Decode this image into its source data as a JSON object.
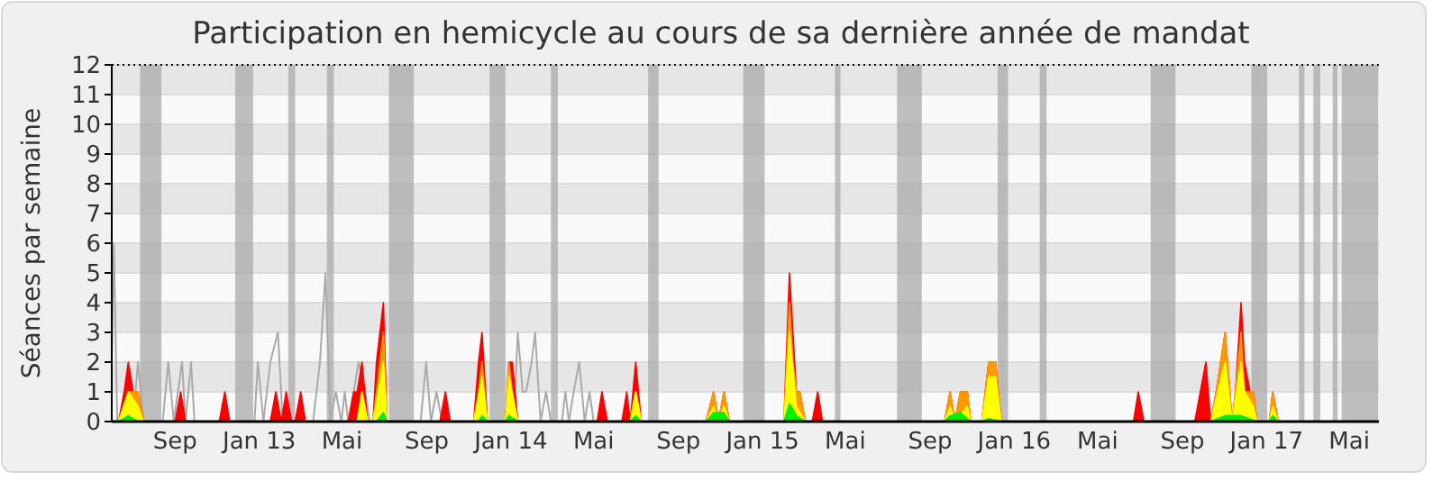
{
  "chart_data": {
    "type": "area",
    "title": "Participation en hemicycle au cours de sa dernière année de mandat",
    "ylabel": "Séances par semaine",
    "xlim": [
      "2012-06-01",
      "2017-06-13"
    ],
    "xticks": [
      {
        "value": "2012-09-01",
        "label": "Sep"
      },
      {
        "value": "2013-01-01",
        "label": "Jan 13"
      },
      {
        "value": "2013-05-01",
        "label": "Mai"
      },
      {
        "value": "2013-09-01",
        "label": "Sep"
      },
      {
        "value": "2014-01-01",
        "label": "Jan 14"
      },
      {
        "value": "2014-05-01",
        "label": "Mai"
      },
      {
        "value": "2014-09-01",
        "label": "Sep"
      },
      {
        "value": "2015-01-01",
        "label": "Jan 15"
      },
      {
        "value": "2015-05-01",
        "label": "Mai"
      },
      {
        "value": "2015-09-01",
        "label": "Sep"
      },
      {
        "value": "2016-01-01",
        "label": "Jan 16"
      },
      {
        "value": "2016-05-01",
        "label": "Mai"
      },
      {
        "value": "2016-09-01",
        "label": "Sep"
      },
      {
        "value": "2017-01-01",
        "label": "Jan 17"
      },
      {
        "value": "2017-05-01",
        "label": "Mai"
      }
    ],
    "ylim": [
      0,
      12
    ],
    "yticks": [
      0,
      1,
      2,
      3,
      4,
      5,
      6,
      7,
      8,
      9,
      10,
      11,
      12
    ],
    "grid": "y",
    "bands": [
      {
        "axis": "x",
        "from": "2012-07-12",
        "to": "2012-08-12",
        "color": "#aaaaaa"
      },
      {
        "axis": "x",
        "from": "2012-11-27",
        "to": "2012-12-23",
        "color": "#aaaaaa"
      },
      {
        "axis": "x",
        "from": "2013-02-12",
        "to": "2013-02-22",
        "color": "#aaaaaa"
      },
      {
        "axis": "x",
        "from": "2013-04-09",
        "to": "2013-04-19",
        "color": "#aaaaaa"
      },
      {
        "axis": "x",
        "from": "2013-07-08",
        "to": "2013-08-13",
        "color": "#aaaaaa"
      },
      {
        "axis": "x",
        "from": "2013-12-01",
        "to": "2013-12-24",
        "color": "#aaaaaa"
      },
      {
        "axis": "x",
        "from": "2014-02-28",
        "to": "2014-03-10",
        "color": "#aaaaaa"
      },
      {
        "axis": "x",
        "from": "2014-07-19",
        "to": "2014-08-03",
        "color": "#aaaaaa"
      },
      {
        "axis": "x",
        "from": "2014-12-04",
        "to": "2015-01-04",
        "color": "#aaaaaa"
      },
      {
        "axis": "x",
        "from": "2015-04-16",
        "to": "2015-04-24",
        "color": "#aaaaaa"
      },
      {
        "axis": "x",
        "from": "2015-07-15",
        "to": "2015-08-20",
        "color": "#aaaaaa"
      },
      {
        "axis": "x",
        "from": "2015-12-08",
        "to": "2015-12-23",
        "color": "#aaaaaa"
      },
      {
        "axis": "x",
        "from": "2016-02-07",
        "to": "2016-02-17",
        "color": "#aaaaaa"
      },
      {
        "axis": "x",
        "from": "2016-07-17",
        "to": "2016-08-22",
        "color": "#aaaaaa"
      },
      {
        "axis": "x",
        "from": "2016-12-10",
        "to": "2017-01-02",
        "color": "#aaaaaa"
      },
      {
        "axis": "x",
        "from": "2017-02-17",
        "to": "2017-02-25",
        "color": "#aaaaaa"
      },
      {
        "axis": "x",
        "from": "2017-03-10",
        "to": "2017-03-20",
        "color": "#aaaaaa"
      },
      {
        "axis": "x",
        "from": "2017-04-07",
        "to": "2017-04-14",
        "color": "#aaaaaa"
      },
      {
        "axis": "x",
        "from": "2017-04-20",
        "to": "2017-06-12",
        "color": "#aaaaaa"
      }
    ],
    "series": [
      {
        "type": "line",
        "color": "#aaaaaa",
        "x": [
          "2012-06-01",
          "2012-06-04",
          "2012-06-09",
          "2012-07-02",
          "2012-07-09",
          "2012-07-17",
          "2012-08-14",
          "2012-08-22",
          "2012-08-30",
          "2012-09-11",
          "2012-09-16",
          "2012-09-24",
          "2012-09-29",
          "2012-12-25",
          "2012-12-30",
          "2013-01-07",
          "2013-01-12",
          "2013-01-17",
          "2013-01-28",
          "2013-02-04",
          "2013-03-20",
          "2013-03-30",
          "2013-04-07",
          "2013-04-14",
          "2013-04-22",
          "2013-04-30",
          "2013-05-05",
          "2013-05-10",
          "2013-05-18",
          "2013-05-25",
          "2013-06-04",
          "2013-06-10",
          "2013-08-23",
          "2013-08-31",
          "2013-09-07",
          "2013-09-15",
          "2013-09-23",
          "2014-01-05",
          "2014-01-11",
          "2014-01-18",
          "2014-01-23",
          "2014-01-31",
          "2014-02-05",
          "2014-02-13",
          "2014-02-21",
          "2014-02-28",
          "2014-03-16",
          "2014-03-21",
          "2014-03-26",
          "2014-04-02",
          "2014-04-10",
          "2014-04-18",
          "2014-04-25",
          "2014-05-01",
          "2017-06-13"
        ],
        "values": [
          2,
          6,
          0,
          0,
          2,
          0,
          0,
          2,
          0,
          2,
          0,
          2,
          0,
          0,
          2,
          0,
          1,
          2,
          3,
          0,
          0,
          2,
          5,
          0,
          1,
          0,
          1,
          0,
          1,
          2,
          1,
          0,
          0,
          2,
          0,
          1,
          0,
          0,
          3,
          1,
          1,
          2,
          3,
          0,
          1,
          0,
          0,
          1,
          0,
          1,
          2,
          0,
          1,
          0,
          0
        ]
      },
      {
        "color": "#ff0000",
        "x": [
          "2012-06-11",
          "2012-06-19",
          "2012-06-25",
          "2012-07-02",
          "2012-07-09",
          "2012-07-17",
          "2012-09-01",
          "2012-09-09",
          "2012-09-16",
          "2012-11-04",
          "2012-11-12",
          "2012-11-19",
          "2013-01-17",
          "2013-01-25",
          "2013-02-02",
          "2013-02-09",
          "2013-02-17",
          "2013-02-22",
          "2013-03-02",
          "2013-03-09",
          "2013-05-10",
          "2013-05-18",
          "2013-05-23",
          "2013-05-30",
          "2013-06-07",
          "2013-06-15",
          "2013-06-20",
          "2013-06-25",
          "2013-06-30",
          "2013-07-05",
          "2013-09-20",
          "2013-09-28",
          "2013-10-05",
          "2013-11-08",
          "2013-11-15",
          "2013-11-20",
          "2013-11-28",
          "2013-12-24",
          "2013-12-29",
          "2014-01-03",
          "2014-01-11",
          "2014-05-06",
          "2014-05-13",
          "2014-05-21",
          "2014-06-11",
          "2014-06-18",
          "2014-06-23",
          "2014-07-01",
          "2014-07-09",
          "2014-10-11",
          "2014-10-22",
          "2014-10-29",
          "2014-11-06",
          "2014-11-14",
          "2015-02-01",
          "2015-02-09",
          "2015-02-14",
          "2015-02-19",
          "2015-02-24",
          "2015-03-04",
          "2015-03-14",
          "2015-03-22",
          "2015-03-29",
          "2015-09-22",
          "2015-09-30",
          "2015-10-07",
          "2015-10-15",
          "2015-10-25",
          "2015-10-30",
          "2015-11-15",
          "2015-11-25",
          "2015-12-05",
          "2015-12-13",
          "2016-06-22",
          "2016-06-29",
          "2016-07-07",
          "2016-09-19",
          "2016-10-05",
          "2016-10-12",
          "2016-10-20",
          "2016-11-02",
          "2016-11-12",
          "2016-11-17",
          "2016-11-25",
          "2016-11-30",
          "2016-12-08",
          "2016-12-13",
          "2016-12-18",
          "2017-01-05",
          "2017-01-10",
          "2017-01-18"
        ],
        "values": [
          0,
          1,
          2,
          1,
          1,
          0,
          0,
          1,
          0,
          0,
          1,
          0,
          0,
          1,
          0,
          1,
          0,
          0,
          1,
          0,
          0,
          1,
          1,
          2,
          0,
          0,
          2,
          3,
          4,
          0,
          0,
          1,
          0,
          0,
          2,
          3,
          0,
          0,
          2,
          2,
          0,
          0,
          1,
          0,
          0,
          1,
          0,
          2,
          0,
          0,
          1,
          0,
          1,
          0,
          0,
          5,
          3,
          1,
          1,
          0,
          0,
          1,
          0,
          0,
          1,
          0,
          1,
          1,
          0,
          0,
          2,
          2,
          0,
          0,
          1,
          0,
          0,
          2,
          0,
          1,
          3,
          0,
          1,
          4,
          2,
          1,
          1,
          0,
          0,
          1,
          0
        ]
      },
      {
        "color": "#ff9900",
        "x": [
          "2012-06-11",
          "2012-06-25",
          "2012-07-09",
          "2012-07-17",
          "2013-05-23",
          "2013-05-30",
          "2013-06-07",
          "2013-06-15",
          "2013-06-25",
          "2013-06-30",
          "2013-07-05",
          "2013-11-08",
          "2013-11-15",
          "2013-11-20",
          "2013-11-28",
          "2013-12-24",
          "2013-12-29",
          "2014-01-03",
          "2014-01-11",
          "2014-06-23",
          "2014-07-01",
          "2014-07-09",
          "2014-10-11",
          "2014-10-22",
          "2014-10-29",
          "2014-11-06",
          "2014-11-14",
          "2015-02-01",
          "2015-02-09",
          "2015-02-14",
          "2015-02-19",
          "2015-02-24",
          "2015-03-04",
          "2015-09-22",
          "2015-09-30",
          "2015-10-07",
          "2015-10-15",
          "2015-10-25",
          "2015-10-30",
          "2015-11-15",
          "2015-11-25",
          "2015-12-05",
          "2015-12-13",
          "2016-10-12",
          "2016-10-20",
          "2016-11-02",
          "2016-11-12",
          "2016-11-17",
          "2016-11-25",
          "2016-11-30",
          "2016-12-08",
          "2016-12-13",
          "2016-12-18",
          "2017-01-05",
          "2017-01-10",
          "2017-01-18"
        ],
        "values": [
          0,
          1,
          1,
          0,
          0,
          1,
          0,
          0,
          2,
          3,
          0,
          0,
          1,
          2,
          0,
          0,
          2,
          1,
          0,
          0,
          1,
          0,
          0,
          1,
          0,
          1,
          0,
          0,
          4,
          2,
          1,
          1,
          0,
          0,
          1,
          0,
          1,
          1,
          0,
          0,
          2,
          2,
          0,
          0,
          1,
          3,
          0,
          1,
          3,
          1,
          1,
          1,
          0,
          0,
          1,
          0
        ]
      },
      {
        "color": "#ffff00",
        "x": [
          "2012-06-11",
          "2012-06-25",
          "2012-07-09",
          "2012-07-17",
          "2013-05-23",
          "2013-05-30",
          "2013-06-07",
          "2013-06-15",
          "2013-06-30",
          "2013-07-05",
          "2013-11-08",
          "2013-11-20",
          "2013-11-28",
          "2013-12-24",
          "2013-12-29",
          "2014-01-11",
          "2014-06-23",
          "2014-07-01",
          "2014-07-09",
          "2014-10-11",
          "2014-10-22",
          "2014-10-29",
          "2014-11-06",
          "2014-11-14",
          "2015-02-01",
          "2015-02-09",
          "2015-02-19",
          "2015-03-04",
          "2015-09-22",
          "2015-09-30",
          "2015-10-07",
          "2015-10-25",
          "2015-10-30",
          "2015-11-15",
          "2015-11-25",
          "2015-12-05",
          "2015-12-13",
          "2016-10-12",
          "2016-11-02",
          "2016-11-12",
          "2016-11-25",
          "2016-11-30",
          "2016-12-13",
          "2016-12-18",
          "2017-01-05",
          "2017-01-10",
          "2017-01-18"
        ],
        "values": [
          0,
          1,
          0.5,
          0,
          0,
          1,
          0,
          0,
          2,
          0,
          0,
          1.5,
          0,
          0,
          1.5,
          0,
          0,
          1,
          0,
          0,
          0.5,
          0,
          0.5,
          0,
          0,
          3,
          0.5,
          0,
          0,
          0.5,
          0,
          0.5,
          0,
          0,
          1.5,
          1.5,
          0,
          0,
          2,
          0,
          2,
          1,
          0.5,
          0,
          0,
          0.5,
          0
        ]
      },
      {
        "color": "#00ee00",
        "x": [
          "2012-06-11",
          "2012-06-25",
          "2012-07-09",
          "2013-06-20",
          "2013-06-30",
          "2013-07-05",
          "2013-11-15",
          "2013-11-20",
          "2013-11-28",
          "2013-12-24",
          "2013-12-29",
          "2014-01-11",
          "2014-06-23",
          "2014-07-01",
          "2014-07-09",
          "2014-10-11",
          "2014-10-22",
          "2014-11-06",
          "2014-11-14",
          "2015-02-01",
          "2015-02-09",
          "2015-02-19",
          "2015-03-04",
          "2015-09-22",
          "2015-09-30",
          "2015-10-15",
          "2015-10-30",
          "2015-11-15",
          "2015-11-25",
          "2015-12-13",
          "2016-10-12",
          "2016-11-02",
          "2016-11-25",
          "2016-12-18",
          "2017-01-05",
          "2017-01-10",
          "2017-01-18"
        ],
        "values": [
          0,
          0.2,
          0,
          0,
          0.3,
          0,
          0,
          0.2,
          0,
          0,
          0.2,
          0,
          0,
          0.2,
          0,
          0,
          0.3,
          0.3,
          0,
          0,
          0.6,
          0.2,
          0,
          0,
          0.2,
          0.3,
          0,
          0,
          0.1,
          0,
          0,
          0.2,
          0.2,
          0,
          0,
          0.2,
          0
        ]
      }
    ]
  }
}
